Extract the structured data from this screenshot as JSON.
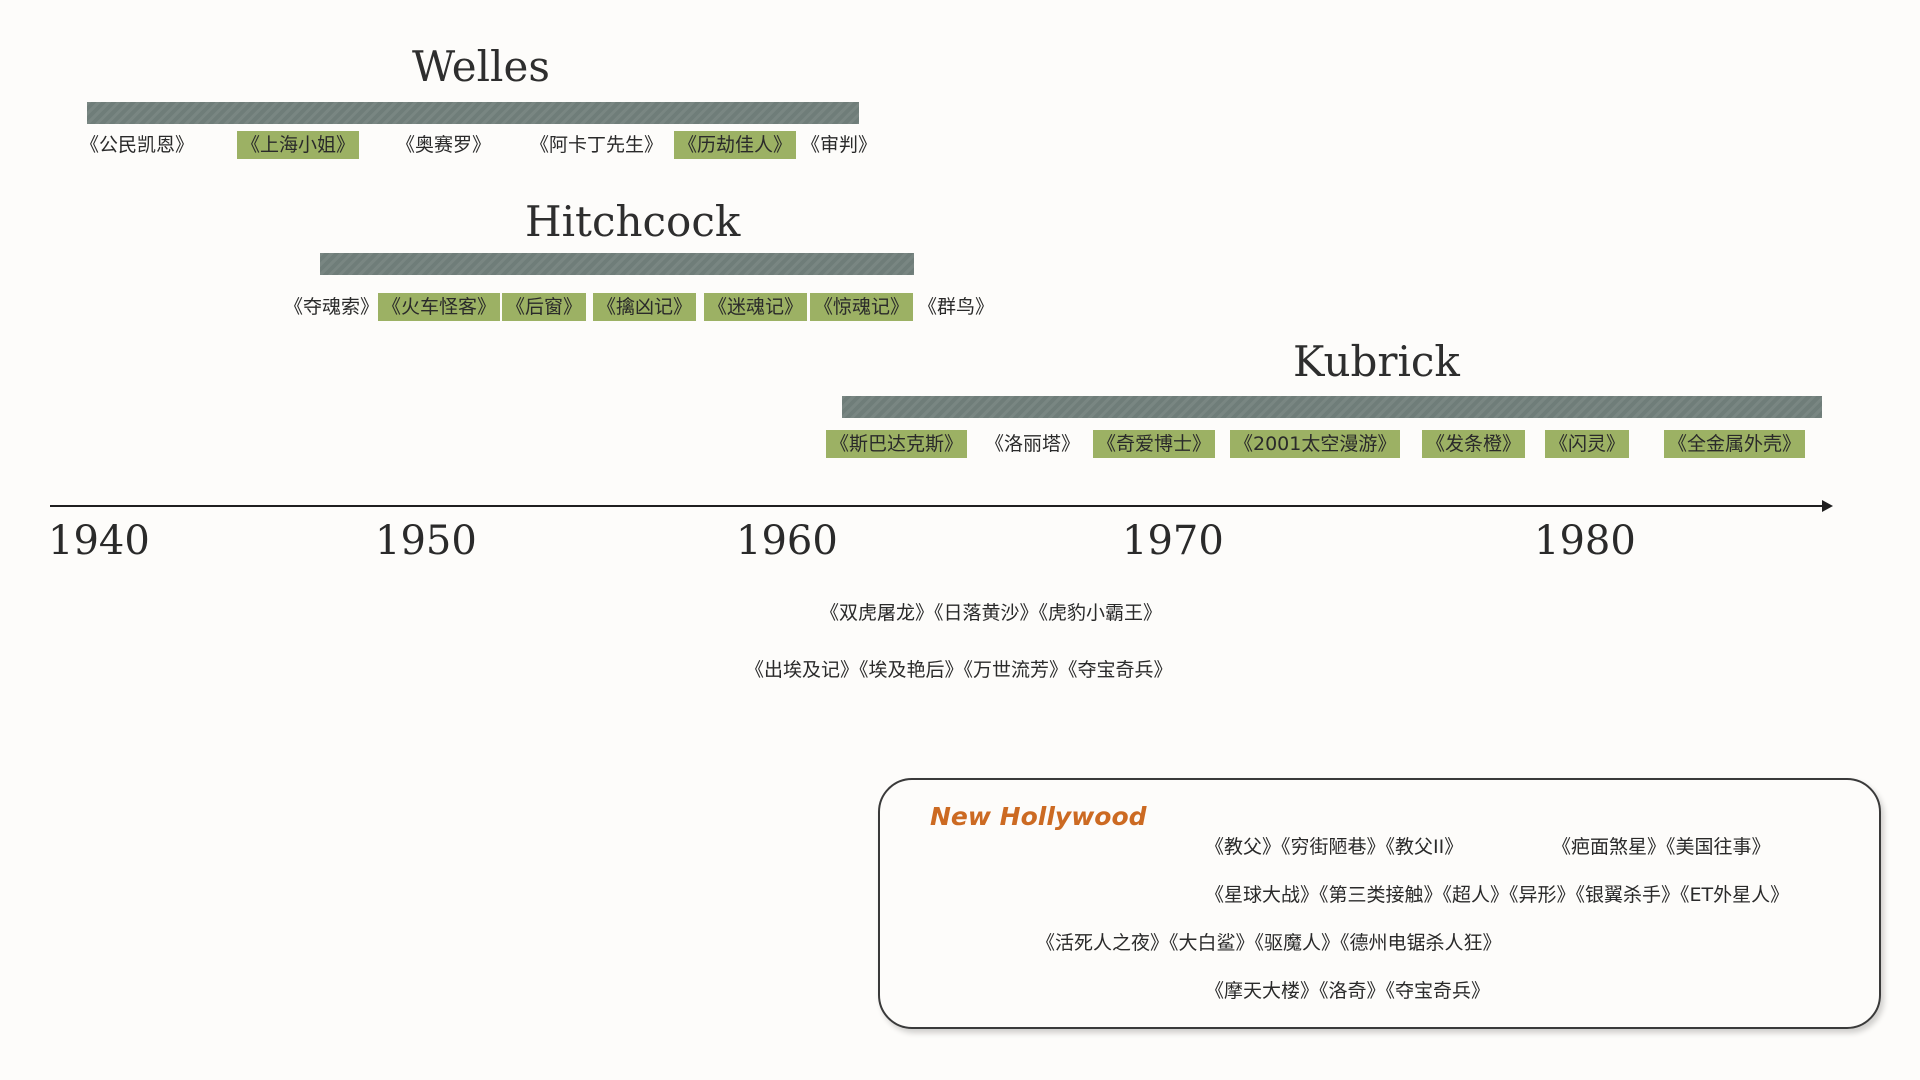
{
  "directors": {
    "welles": {
      "name": "Welles",
      "films": [
        {
          "title": "《公民凯恩》",
          "highlight": false
        },
        {
          "title": "《上海小姐》",
          "highlight": true
        },
        {
          "title": "《奥赛罗》",
          "highlight": false
        },
        {
          "title": "《阿卡丁先生》",
          "highlight": false
        },
        {
          "title": "《历劫佳人》",
          "highlight": true
        },
        {
          "title": "《审判》",
          "highlight": false
        }
      ]
    },
    "hitchcock": {
      "name": "Hitchcock",
      "films": [
        {
          "title": "《夺魂索》",
          "highlight": false
        },
        {
          "title": "《火车怪客》",
          "highlight": true
        },
        {
          "title": "《后窗》",
          "highlight": true
        },
        {
          "title": "《擒凶记》",
          "highlight": true
        },
        {
          "title": "《迷魂记》",
          "highlight": true
        },
        {
          "title": "《惊魂记》",
          "highlight": true
        },
        {
          "title": "《群鸟》",
          "highlight": false
        }
      ]
    },
    "kubrick": {
      "name": "Kubrick",
      "films": [
        {
          "title": "《斯巴达克斯》",
          "highlight": true
        },
        {
          "title": "《洛丽塔》",
          "highlight": false
        },
        {
          "title": "《奇爱博士》",
          "highlight": true
        },
        {
          "title": "《2001太空漫游》",
          "highlight": true
        },
        {
          "title": "《发条橙》",
          "highlight": true
        },
        {
          "title": "《闪灵》",
          "highlight": true
        },
        {
          "title": "《全金属外壳》",
          "highlight": true
        }
      ]
    }
  },
  "timeline": {
    "ticks": [
      "1940",
      "1950",
      "1960",
      "1970",
      "1980"
    ]
  },
  "epics": {
    "row1": "《双虎屠龙》《日落黄沙》《虎豹小霸王》",
    "row2": "《出埃及记》《埃及艳后》《万世流芳》《夺宝奇兵》"
  },
  "new_hollywood": {
    "title": "New Hollywood",
    "row1a": "《教父》《穷街陋巷》《教父II》",
    "row1b": "《疤面煞星》《美国往事》",
    "row2": "《星球大战》《第三类接触》《超人》《异形》《银翼杀手》《ET外星人》",
    "row3": "《活死人之夜》《大白鲨》《驱魔人》《德州电锯杀人狂》",
    "row4": "《摩天大楼》《洛奇》《夺宝奇兵》"
  },
  "colors": {
    "bar": "#6f7d79",
    "highlight": "#9cb164",
    "accent": "#cc6a22"
  }
}
